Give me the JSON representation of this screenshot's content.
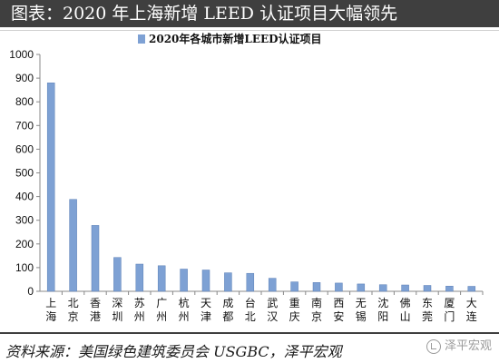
{
  "header": {
    "title": "图表：2020 年上海新增 LEED 认证项目大幅领先"
  },
  "footer": {
    "source": "资料来源：美国绿色建筑委员会 USGBC，泽平宏观",
    "watermark": "泽平宏观"
  },
  "colors": {
    "bar": "#7ea1d4",
    "bar_edge": "#5b7fb5",
    "header_bg": "#3f3f3f",
    "axis": "#888888"
  },
  "chart_data": {
    "type": "bar",
    "categories": [
      "上海",
      "北京",
      "香港",
      "深圳",
      "苏州",
      "广州",
      "杭州",
      "天津",
      "成都",
      "台北",
      "武汉",
      "重庆",
      "南京",
      "西安",
      "无锡",
      "沈阳",
      "佛山",
      "东莞",
      "厦门",
      "大连"
    ],
    "series": [
      {
        "name": "2020年各城市新增LEED认证项目",
        "values": [
          880,
          388,
          278,
          143,
          115,
          108,
          94,
          90,
          78,
          76,
          55,
          40,
          37,
          35,
          31,
          28,
          27,
          25,
          22,
          21
        ]
      }
    ],
    "ylim": [
      0,
      1000
    ],
    "yticks": [
      0,
      100,
      200,
      300,
      400,
      500,
      600,
      700,
      800,
      900,
      1000
    ],
    "legend_position": "top-center",
    "grid": false
  }
}
